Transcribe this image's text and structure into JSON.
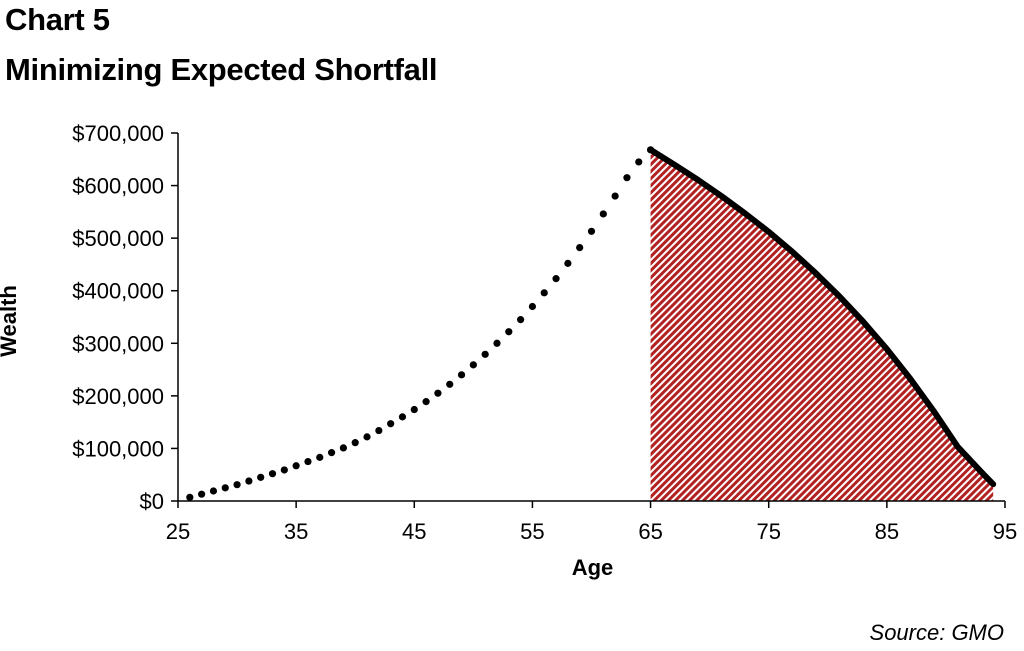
{
  "header": {
    "chart_label": "Chart 5",
    "title": "Minimizing Expected Shortfall"
  },
  "footer": {
    "source": "Source: GMO"
  },
  "chart_data": {
    "type": "area",
    "xlabel": "Age",
    "ylabel": "Wealth",
    "xlim": [
      25,
      95
    ],
    "ylim": [
      0,
      700000
    ],
    "x_ticks": [
      25,
      35,
      45,
      55,
      65,
      75,
      85,
      95
    ],
    "x_tick_labels": [
      "25",
      "35",
      "45",
      "55",
      "65",
      "75",
      "85",
      "95"
    ],
    "y_ticks": [
      0,
      100000,
      200000,
      300000,
      400000,
      500000,
      600000,
      700000
    ],
    "y_tick_labels": [
      "$0",
      "$100,000",
      "$200,000",
      "$300,000",
      "$400,000",
      "$500,000",
      "$600,000",
      "$700,000"
    ],
    "grid": false,
    "legend": "none",
    "series": [
      {
        "style": "dotted",
        "color": "#000000",
        "x": [
          26,
          27,
          28,
          29,
          30,
          31,
          32,
          33,
          34,
          35,
          36,
          37,
          38,
          39,
          40,
          41,
          42,
          43,
          44,
          45,
          46,
          47,
          48,
          49,
          50,
          51,
          52,
          53,
          54,
          55,
          56,
          57,
          58,
          59,
          60,
          61,
          62,
          63,
          64,
          65
        ],
        "y": [
          7000,
          13000,
          19000,
          25000,
          31000,
          38000,
          45000,
          52000,
          59000,
          67000,
          75000,
          83000,
          92000,
          101000,
          111000,
          122000,
          134000,
          147000,
          160000,
          174000,
          189000,
          205000,
          222000,
          240000,
          259000,
          279000,
          300000,
          322000,
          345000,
          370000,
          396000,
          423000,
          452000,
          482000,
          513000,
          546000,
          580000,
          615000,
          645000,
          668000
        ]
      },
      {
        "style": "solid",
        "color": "#000000",
        "shaded_fill": "#b22222",
        "x": [
          65,
          67,
          69,
          71,
          73,
          75,
          77,
          79,
          81,
          83,
          85,
          87,
          89,
          91,
          93,
          94
        ],
        "y": [
          668000,
          640000,
          611000,
          580000,
          547000,
          512000,
          474000,
          433000,
          389000,
          341000,
          289000,
          232000,
          170000,
          103000,
          55000,
          32000
        ]
      }
    ]
  }
}
